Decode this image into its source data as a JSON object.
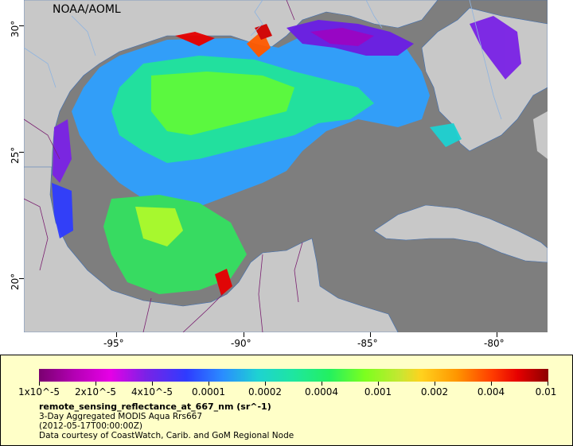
{
  "map": {
    "credit": "NOAA/AOML",
    "y_ticks": [
      "30°",
      "25°",
      "20°"
    ],
    "x_ticks": [
      "-95°",
      "-90°",
      "-85°",
      "-80°"
    ],
    "colors": {
      "ocean_no_data": "#7e7e7e",
      "land": "#c8c8c8",
      "rivers": "#8fb4e0",
      "borders": "#7a2070"
    }
  },
  "legend": {
    "colorbar_labels": [
      "1x10^-5",
      "2x10^-5",
      "4x10^-5",
      "0.0001",
      "0.0002",
      "0.0004",
      "0.001",
      "0.002",
      "0.004",
      "0.01"
    ],
    "variable": "remote_sensing_reflectance_at_667_nm (sr^-1)",
    "line1": "3-Day Aggregated MODIS Aqua Rrs667",
    "line2": "(2012-05-17T00:00:00Z)",
    "line3": "Data courtesy of CoastWatch, Carib. and GoM Regional Node"
  }
}
